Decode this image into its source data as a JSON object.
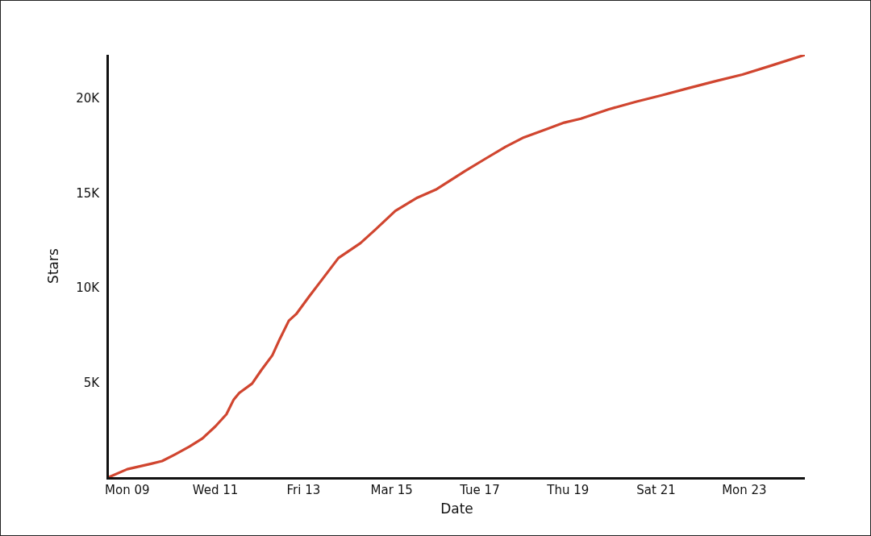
{
  "chart_data": {
    "type": "line",
    "xlabel": "Date",
    "ylabel": "Stars",
    "x": [
      "--03-08T14:00",
      "--03-09T00:00",
      "--03-09T13:00",
      "--03-09T19:00",
      "--03-10T02:00",
      "--03-10T10:00",
      "--03-10T17:00",
      "--03-11T00:00",
      "--03-11T06:00",
      "--03-11T10:00",
      "--03-11T13:00",
      "--03-11T20:00",
      "--03-12T01:00",
      "--03-12T07:00",
      "--03-12T11:00",
      "--03-12T16:00",
      "--03-12T20:00",
      "--03-13T03:00",
      "--03-13T11:00",
      "--03-13T19:00",
      "--03-14T07:00",
      "--03-14T15:00",
      "--03-15T02:00",
      "--03-15T14:00",
      "--03-16T00:00",
      "--03-16T16:00",
      "--03-17T03:00",
      "--03-17T14:00",
      "--03-18T00:00",
      "--03-18T12:00",
      "--03-18T22:00",
      "--03-19T07:00",
      "--03-19T22:00",
      "--03-20T13:00",
      "--03-21T03:00",
      "--03-21T18:00",
      "--03-22T08:00",
      "--03-22T23:00",
      "--03-23T14:00",
      "--03-24T09:00"
    ],
    "series": [
      {
        "color": "#d0452f",
        "values": [
          0,
          420,
          710,
          850,
          1200,
          1620,
          2050,
          2680,
          3320,
          4100,
          4450,
          4940,
          5650,
          6430,
          7280,
          8260,
          8610,
          9530,
          10550,
          11570,
          12360,
          13060,
          14060,
          14760,
          15180,
          16170,
          16810,
          17440,
          17940,
          18360,
          18720,
          18930,
          19420,
          19820,
          20160,
          20550,
          20900,
          21260,
          21710,
          22300
        ]
      }
    ],
    "xlim": [
      "--03-08T14:00",
      "--03-24T09:00"
    ],
    "xticks": [
      {
        "value": "--03-09",
        "label": "Mon 09"
      },
      {
        "value": "--03-11",
        "label": "Wed 11"
      },
      {
        "value": "--03-13",
        "label": "Fri 13"
      },
      {
        "value": "--03-15",
        "label": "Mar 15"
      },
      {
        "value": "--03-17",
        "label": "Tue 17"
      },
      {
        "value": "--03-19",
        "label": "Thu 19"
      },
      {
        "value": "--03-21",
        "label": "Sat 21"
      },
      {
        "value": "--03-23",
        "label": "Mon 23"
      }
    ],
    "ylim": [
      0,
      22300
    ],
    "yticks": [
      {
        "value": 5000,
        "label": "5K"
      },
      {
        "value": 10000,
        "label": "10K"
      },
      {
        "value": 15000,
        "label": "15K"
      },
      {
        "value": 20000,
        "label": "20K"
      }
    ]
  }
}
